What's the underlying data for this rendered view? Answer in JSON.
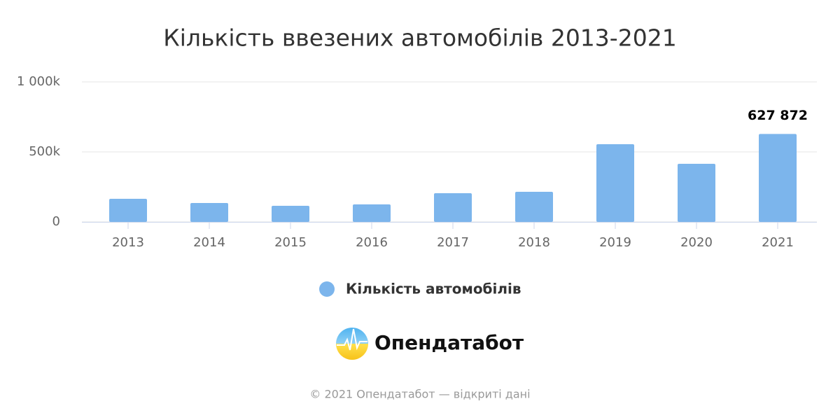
{
  "chart_data": {
    "type": "bar",
    "title": "Кількість ввезених автомобілів 2013-2021",
    "categories": [
      "2013",
      "2014",
      "2015",
      "2016",
      "2017",
      "2018",
      "2019",
      "2020",
      "2021"
    ],
    "series": [
      {
        "name": "Кількість автомобілів",
        "color": "#7cb5ec",
        "values": [
          165000,
          135000,
          115000,
          125000,
          205000,
          215000,
          555000,
          415000,
          627872
        ],
        "value_labels": [
          null,
          null,
          null,
          null,
          null,
          null,
          null,
          null,
          "627 872"
        ]
      }
    ],
    "ylim": [
      0,
      1000000
    ],
    "yticks": [
      0,
      {
        "value": 500000,
        "label": "500k"
      },
      {
        "value": 1000000,
        "label": "1 000k"
      }
    ],
    "grid": true,
    "legend": "bottom"
  },
  "logo_text": "Опендатабот",
  "credits": "© 2021 Опендатабот — відкриті дані"
}
